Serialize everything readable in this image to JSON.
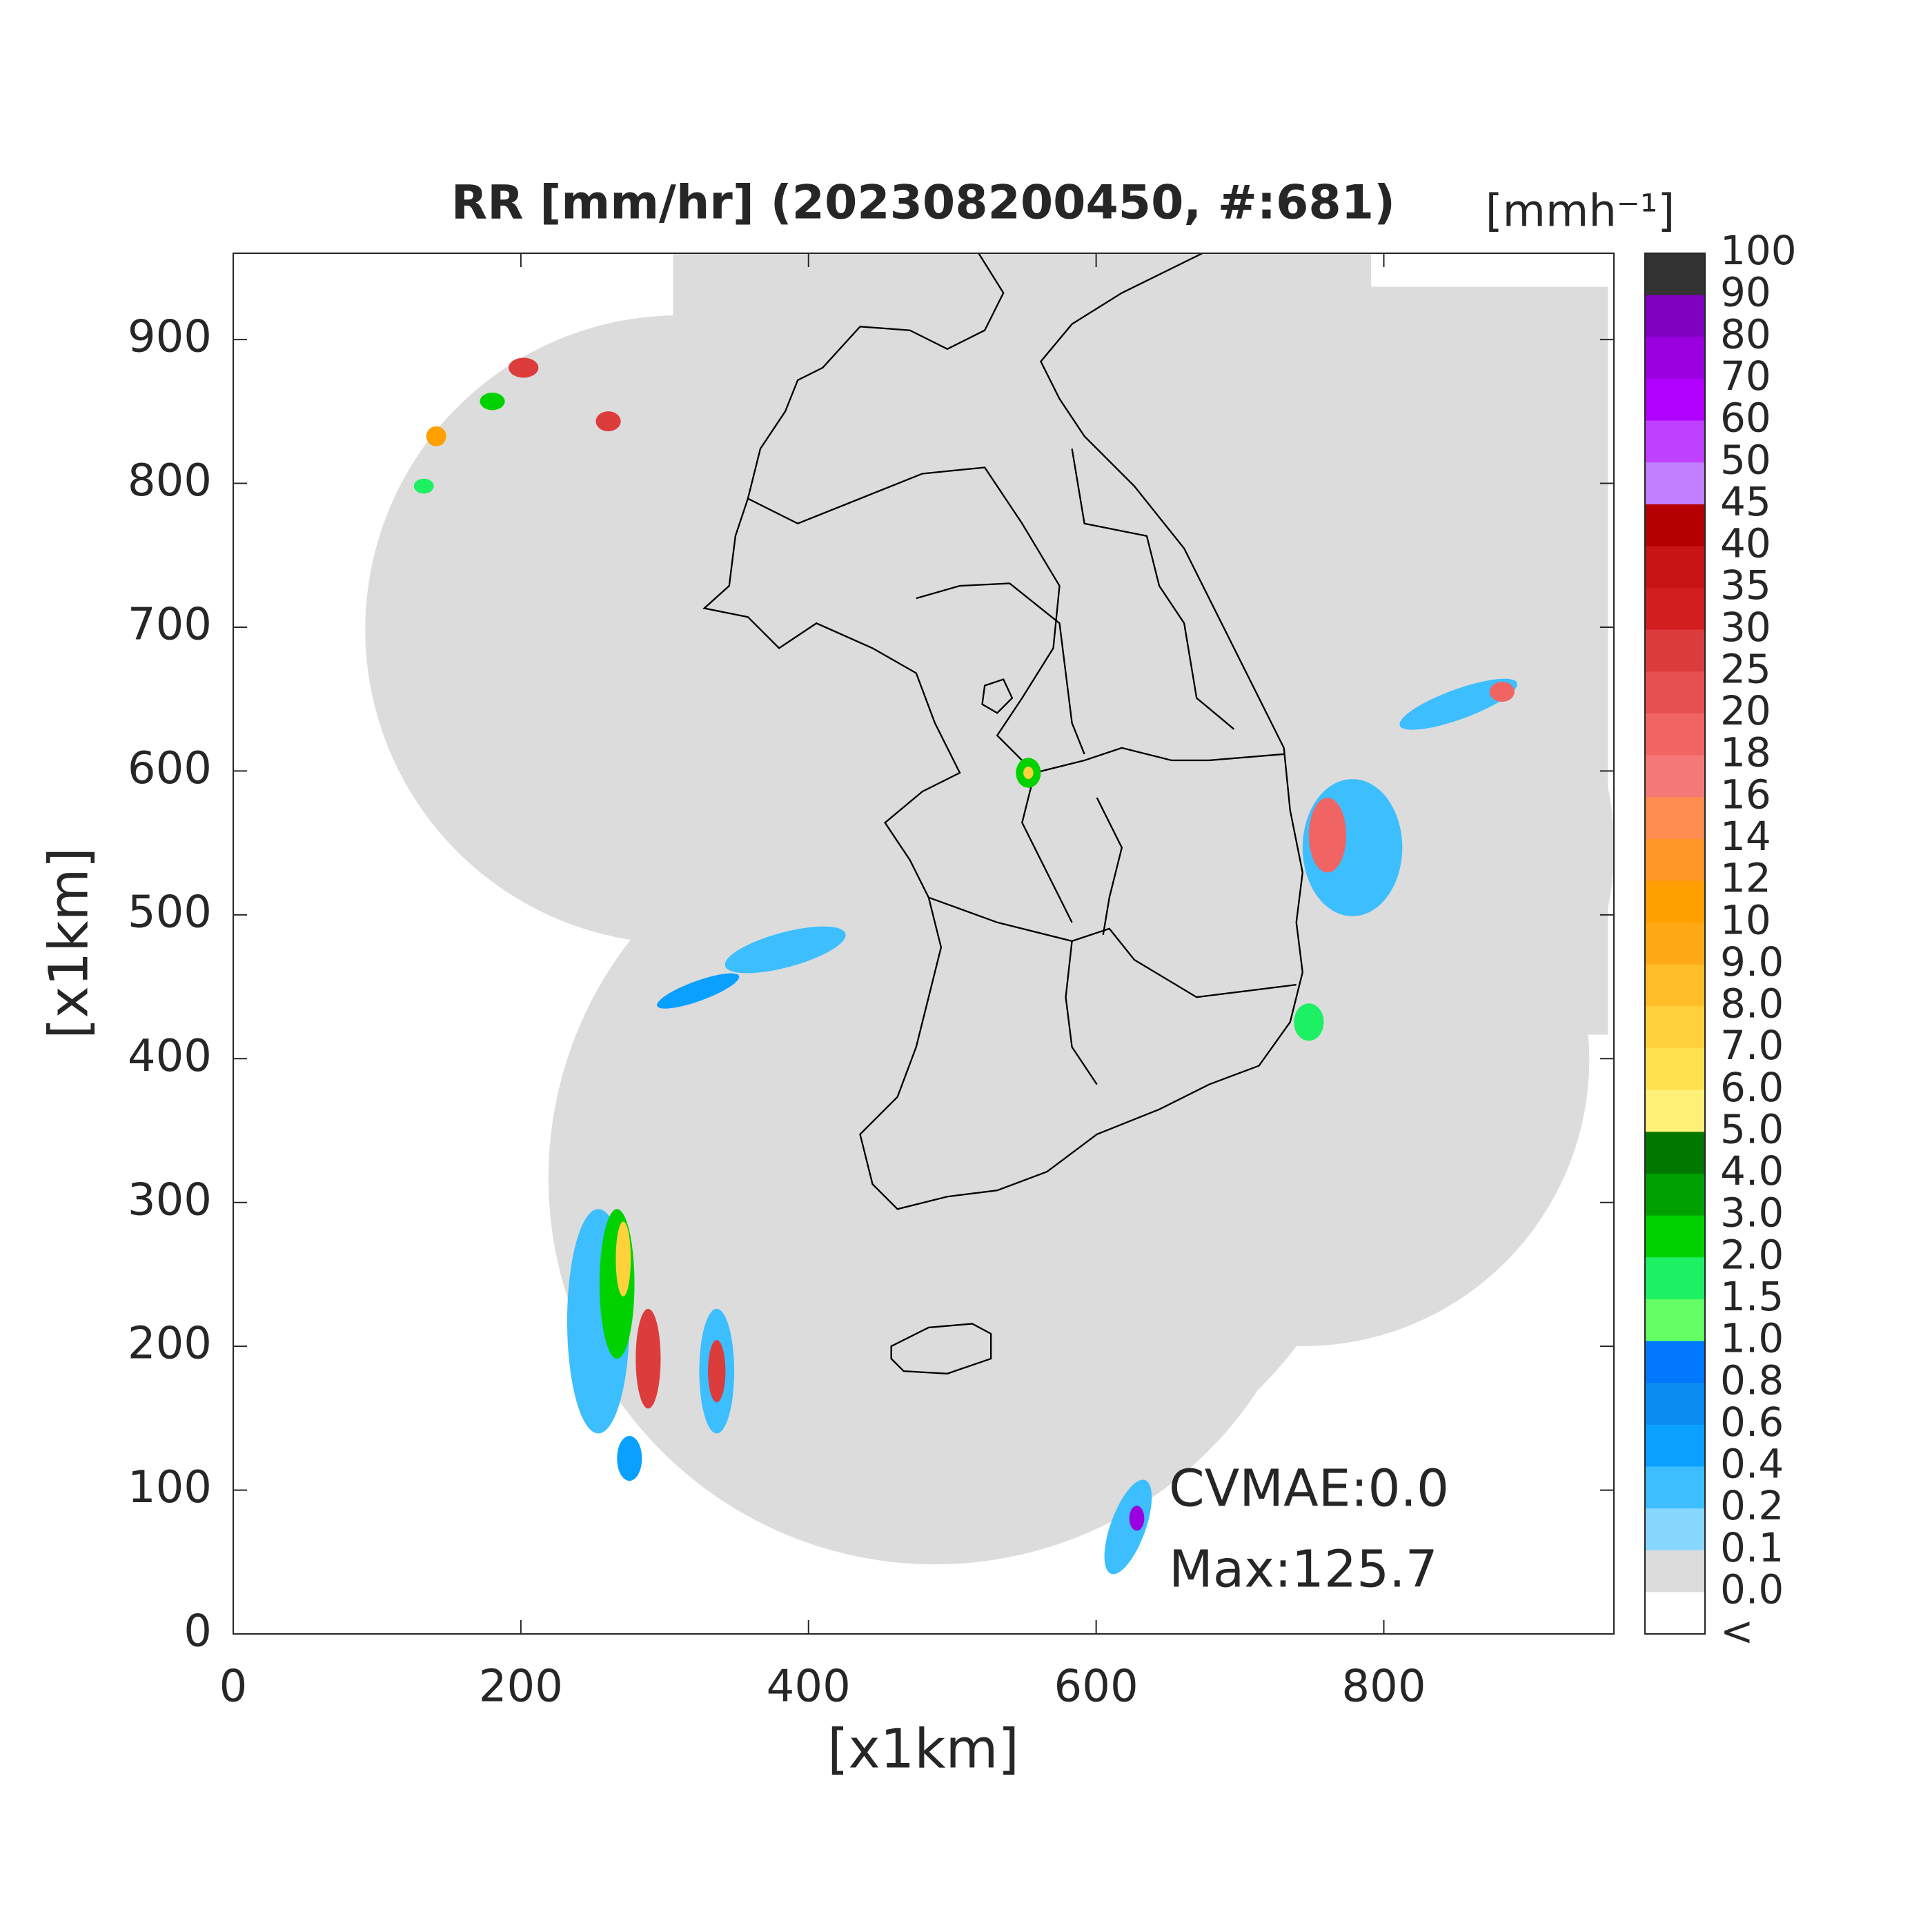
{
  "title": "RR [mm/hr] (202308200450, #:681)",
  "x_axis": {
    "label": "[x1km]",
    "lim": [
      0,
      960
    ],
    "ticks": [
      0,
      200,
      400,
      600,
      800
    ]
  },
  "y_axis": {
    "label": "[x1km]",
    "lim": [
      0,
      960
    ],
    "ticks": [
      0,
      100,
      200,
      300,
      400,
      500,
      600,
      700,
      800,
      900
    ]
  },
  "colorbar": {
    "unit": "[mmh⁻¹]",
    "labels": [
      "100",
      "90",
      "80",
      "70",
      "60",
      "50",
      "45",
      "40",
      "35",
      "30",
      "25",
      "20",
      "18",
      "16",
      "14",
      "12",
      "10",
      "9.0",
      "8.0",
      "7.0",
      "6.0",
      "5.0",
      "4.0",
      "3.0",
      "2.0",
      "1.5",
      "1.0",
      "0.8",
      "0.6",
      "0.4",
      "0.2",
      "0.1",
      "0.0",
      "<"
    ],
    "colors": [
      "#333333",
      "#8000c0",
      "#9a00e0",
      "#b000ff",
      "#c040ff",
      "#c080ff",
      "#b40000",
      "#c81414",
      "#d21e1e",
      "#dc3c3c",
      "#e65050",
      "#f06464",
      "#f57878",
      "#ff8c50",
      "#ff9628",
      "#ffa000",
      "#ffaa14",
      "#ffbe28",
      "#ffd23c",
      "#ffe150",
      "#fff078",
      "#007800",
      "#00a000",
      "#00d200",
      "#1ef064",
      "#64ff64",
      "#0078ff",
      "#0a8cf0",
      "#0aa0ff",
      "#3cbeff",
      "#87d7ff",
      "#dcdcdc",
      "#ffffff"
    ]
  },
  "annotations": [
    "CVMAE:0.0",
    "Max:125.7"
  ]
}
